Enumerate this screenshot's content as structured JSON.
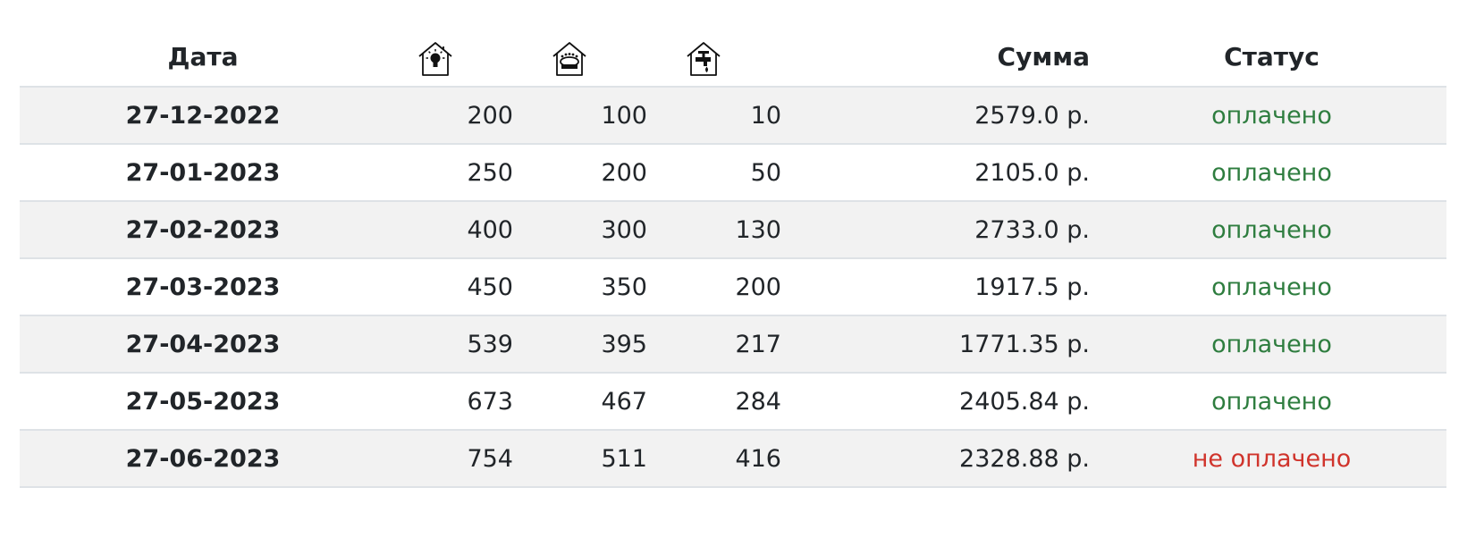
{
  "header": {
    "date_label": "Дата",
    "electricity_icon": "house-lightbulb-icon",
    "gas_icon": "house-gas-burner-icon",
    "water_icon": "house-water-tap-icon",
    "sum_label": "Сумма",
    "status_label": "Статус"
  },
  "rows": [
    {
      "date": "27-12-2022",
      "electricity": "200",
      "gas": "100",
      "water": "10",
      "sum": "2579.0 р.",
      "status": "оплачено",
      "paid": true
    },
    {
      "date": "27-01-2023",
      "electricity": "250",
      "gas": "200",
      "water": "50",
      "sum": "2105.0 р.",
      "status": "оплачено",
      "paid": true
    },
    {
      "date": "27-02-2023",
      "electricity": "400",
      "gas": "300",
      "water": "130",
      "sum": "2733.0 р.",
      "status": "оплачено",
      "paid": true
    },
    {
      "date": "27-03-2023",
      "electricity": "450",
      "gas": "350",
      "water": "200",
      "sum": "1917.5 р.",
      "status": "оплачено",
      "paid": true
    },
    {
      "date": "27-04-2023",
      "electricity": "539",
      "gas": "395",
      "water": "217",
      "sum": "1771.35 р.",
      "status": "оплачено",
      "paid": true
    },
    {
      "date": "27-05-2023",
      "electricity": "673",
      "gas": "467",
      "water": "284",
      "sum": "2405.84 р.",
      "status": "оплачено",
      "paid": true
    },
    {
      "date": "27-06-2023",
      "electricity": "754",
      "gas": "511",
      "water": "416",
      "sum": "2328.88 р.",
      "status": "не оплачено",
      "paid": false
    }
  ],
  "colors": {
    "paid": "#2e7d3f",
    "unpaid": "#d0342c",
    "stripe": "#f2f2f2",
    "border": "#dee2e6"
  }
}
